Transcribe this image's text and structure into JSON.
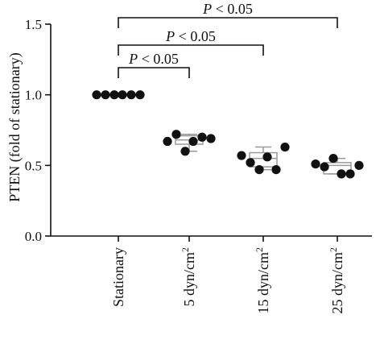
{
  "chart_data": {
    "type": "scatter",
    "subtype": "box-with-points",
    "ylabel": "PTEN (fold of stationary)",
    "ylim": [
      0.0,
      1.5
    ],
    "yticks": [
      0.0,
      0.5,
      1.0,
      1.5
    ],
    "ytick_labels": [
      "0.0",
      "0.5",
      "1.0",
      "1.5"
    ],
    "categories": [
      "Stationary",
      "5 dyn/cm",
      "15 dyn/cm",
      "25 dyn/cm"
    ],
    "category_superscript": [
      "",
      "2",
      "2",
      "2"
    ],
    "groups": [
      {
        "points": [
          1.0,
          1.0,
          1.0,
          1.0,
          1.0,
          1.0
        ],
        "box": {
          "min": 1.0,
          "q1": 1.0,
          "median": 1.0,
          "q3": 1.0,
          "max": 1.0
        }
      },
      {
        "points": [
          0.67,
          0.72,
          0.6,
          0.67,
          0.7,
          0.69
        ],
        "box": {
          "min": 0.6,
          "q1": 0.65,
          "median": 0.68,
          "q3": 0.71,
          "max": 0.72
        }
      },
      {
        "points": [
          0.57,
          0.52,
          0.47,
          0.56,
          0.47,
          0.63
        ],
        "box": {
          "min": 0.47,
          "q1": 0.49,
          "median": 0.55,
          "q3": 0.59,
          "max": 0.63
        }
      },
      {
        "points": [
          0.51,
          0.49,
          0.55,
          0.44,
          0.44,
          0.5
        ],
        "box": {
          "min": 0.44,
          "q1": 0.44,
          "median": 0.5,
          "q3": 0.52,
          "max": 0.55
        }
      }
    ],
    "significance": [
      {
        "from": 0,
        "to": 1,
        "symbol": "P",
        "text": " < 0.05"
      },
      {
        "from": 0,
        "to": 2,
        "symbol": "P",
        "text": " < 0.05"
      },
      {
        "from": 0,
        "to": 3,
        "symbol": "P",
        "text": " < 0.05"
      }
    ],
    "colors": {
      "point": "#111111",
      "box": "#9a9a9a",
      "axis": "#111111"
    }
  }
}
